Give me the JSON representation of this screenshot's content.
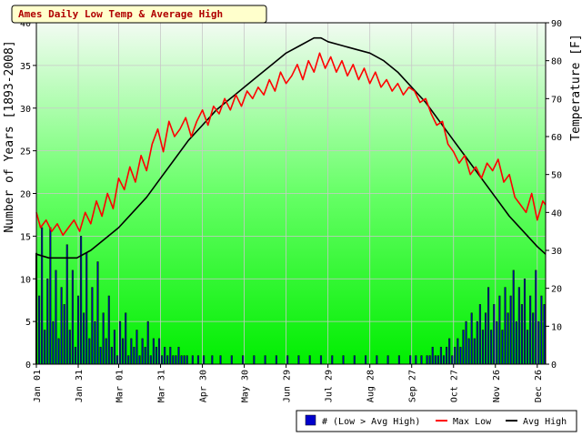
{
  "chart_data": {
    "type": "bar+line",
    "title": "Ames Daily Low Temp & Average High",
    "ylabel_left": "Number of Years [1893-2008]",
    "ylabel_right": "Temperature [F]",
    "xlabel": "",
    "ylim_left": [
      0,
      40
    ],
    "ylim_right": [
      0,
      90
    ],
    "left_ticks": [
      0,
      5,
      10,
      15,
      20,
      25,
      30,
      35,
      40
    ],
    "right_ticks": [
      0,
      10,
      20,
      30,
      40,
      50,
      60,
      70,
      80,
      90
    ],
    "x_ticks": [
      {
        "label": "Jan 01",
        "day": 1
      },
      {
        "label": "Jan 31",
        "day": 31
      },
      {
        "label": "Mar 01",
        "day": 60
      },
      {
        "label": "Mar 31",
        "day": 90
      },
      {
        "label": "Apr 30",
        "day": 120
      },
      {
        "label": "May 30",
        "day": 150
      },
      {
        "label": "Jun 29",
        "day": 180
      },
      {
        "label": "Jul 29",
        "day": 210
      },
      {
        "label": "Aug 28",
        "day": 240
      },
      {
        "label": "Sep 27",
        "day": 270
      },
      {
        "label": "Oct 27",
        "day": 300
      },
      {
        "label": "Nov 26",
        "day": 330
      },
      {
        "label": "Dec 26",
        "day": 360
      }
    ],
    "x_range": [
      1,
      366
    ],
    "grid": true,
    "legend_position": "bottom-right",
    "series": [
      {
        "name": "# (Low > Avg High)",
        "kind": "bar",
        "axis": "left",
        "color": "#0000cc",
        "points": [
          [
            1,
            13
          ],
          [
            3,
            8
          ],
          [
            5,
            16
          ],
          [
            7,
            4
          ],
          [
            9,
            10
          ],
          [
            11,
            16
          ],
          [
            13,
            5
          ],
          [
            15,
            11
          ],
          [
            17,
            3
          ],
          [
            19,
            9
          ],
          [
            21,
            7
          ],
          [
            23,
            14
          ],
          [
            25,
            4
          ],
          [
            27,
            11
          ],
          [
            29,
            2
          ],
          [
            31,
            8
          ],
          [
            33,
            15
          ],
          [
            35,
            6
          ],
          [
            37,
            13
          ],
          [
            39,
            3
          ],
          [
            41,
            9
          ],
          [
            43,
            5
          ],
          [
            45,
            12
          ],
          [
            47,
            2
          ],
          [
            49,
            6
          ],
          [
            51,
            3
          ],
          [
            53,
            8
          ],
          [
            55,
            2
          ],
          [
            57,
            4
          ],
          [
            59,
            1
          ],
          [
            61,
            5
          ],
          [
            63,
            3
          ],
          [
            65,
            6
          ],
          [
            67,
            1
          ],
          [
            69,
            3
          ],
          [
            71,
            2
          ],
          [
            73,
            4
          ],
          [
            75,
            1
          ],
          [
            77,
            3
          ],
          [
            79,
            2
          ],
          [
            81,
            5
          ],
          [
            83,
            1
          ],
          [
            85,
            3
          ],
          [
            87,
            2
          ],
          [
            89,
            3
          ],
          [
            91,
            1
          ],
          [
            93,
            2
          ],
          [
            95,
            1
          ],
          [
            97,
            2
          ],
          [
            99,
            1
          ],
          [
            101,
            1
          ],
          [
            103,
            2
          ],
          [
            105,
            1
          ],
          [
            107,
            1
          ],
          [
            109,
            1
          ],
          [
            113,
            1
          ],
          [
            117,
            1
          ],
          [
            121,
            1
          ],
          [
            127,
            1
          ],
          [
            133,
            1
          ],
          [
            141,
            1
          ],
          [
            149,
            1
          ],
          [
            157,
            1
          ],
          [
            165,
            1
          ],
          [
            173,
            1
          ],
          [
            181,
            1
          ],
          [
            189,
            1
          ],
          [
            197,
            1
          ],
          [
            205,
            1
          ],
          [
            213,
            1
          ],
          [
            221,
            1
          ],
          [
            229,
            1
          ],
          [
            237,
            1
          ],
          [
            245,
            1
          ],
          [
            253,
            1
          ],
          [
            261,
            1
          ],
          [
            269,
            1
          ],
          [
            273,
            1
          ],
          [
            277,
            1
          ],
          [
            281,
            1
          ],
          [
            283,
            1
          ],
          [
            285,
            2
          ],
          [
            287,
            1
          ],
          [
            289,
            1
          ],
          [
            291,
            2
          ],
          [
            293,
            1
          ],
          [
            295,
            2
          ],
          [
            297,
            3
          ],
          [
            299,
            1
          ],
          [
            301,
            2
          ],
          [
            303,
            3
          ],
          [
            305,
            2
          ],
          [
            307,
            4
          ],
          [
            309,
            5
          ],
          [
            311,
            3
          ],
          [
            313,
            6
          ],
          [
            315,
            3
          ],
          [
            317,
            5
          ],
          [
            319,
            7
          ],
          [
            321,
            4
          ],
          [
            323,
            6
          ],
          [
            325,
            9
          ],
          [
            327,
            4
          ],
          [
            329,
            7
          ],
          [
            331,
            5
          ],
          [
            333,
            8
          ],
          [
            335,
            4
          ],
          [
            337,
            9
          ],
          [
            339,
            6
          ],
          [
            341,
            8
          ],
          [
            343,
            11
          ],
          [
            345,
            5
          ],
          [
            347,
            9
          ],
          [
            349,
            7
          ],
          [
            351,
            10
          ],
          [
            353,
            4
          ],
          [
            355,
            8
          ],
          [
            357,
            6
          ],
          [
            359,
            11
          ],
          [
            361,
            5
          ],
          [
            363,
            8
          ],
          [
            365,
            7
          ]
        ]
      },
      {
        "name": "Max Low",
        "kind": "line",
        "axis": "right",
        "color": "#ff0000",
        "points": [
          [
            1,
            40
          ],
          [
            4,
            36
          ],
          [
            8,
            38
          ],
          [
            12,
            35
          ],
          [
            16,
            37
          ],
          [
            20,
            34
          ],
          [
            24,
            36
          ],
          [
            28,
            38
          ],
          [
            32,
            35
          ],
          [
            36,
            40
          ],
          [
            40,
            37
          ],
          [
            44,
            43
          ],
          [
            48,
            39
          ],
          [
            52,
            45
          ],
          [
            56,
            41
          ],
          [
            60,
            49
          ],
          [
            64,
            46
          ],
          [
            68,
            52
          ],
          [
            72,
            48
          ],
          [
            76,
            55
          ],
          [
            80,
            51
          ],
          [
            84,
            58
          ],
          [
            88,
            62
          ],
          [
            92,
            56
          ],
          [
            96,
            64
          ],
          [
            100,
            60
          ],
          [
            104,
            62
          ],
          [
            108,
            65
          ],
          [
            112,
            60
          ],
          [
            116,
            64
          ],
          [
            120,
            67
          ],
          [
            124,
            63
          ],
          [
            128,
            68
          ],
          [
            132,
            66
          ],
          [
            136,
            70
          ],
          [
            140,
            67
          ],
          [
            144,
            71
          ],
          [
            148,
            68
          ],
          [
            152,
            72
          ],
          [
            156,
            70
          ],
          [
            160,
            73
          ],
          [
            164,
            71
          ],
          [
            168,
            75
          ],
          [
            172,
            72
          ],
          [
            176,
            77
          ],
          [
            180,
            74
          ],
          [
            184,
            76
          ],
          [
            188,
            79
          ],
          [
            192,
            75
          ],
          [
            196,
            80
          ],
          [
            200,
            77
          ],
          [
            204,
            82
          ],
          [
            208,
            78
          ],
          [
            212,
            81
          ],
          [
            216,
            77
          ],
          [
            220,
            80
          ],
          [
            224,
            76
          ],
          [
            228,
            79
          ],
          [
            232,
            75
          ],
          [
            236,
            78
          ],
          [
            240,
            74
          ],
          [
            244,
            77
          ],
          [
            248,
            73
          ],
          [
            252,
            75
          ],
          [
            256,
            72
          ],
          [
            260,
            74
          ],
          [
            264,
            71
          ],
          [
            268,
            73
          ],
          [
            272,
            72
          ],
          [
            276,
            69
          ],
          [
            280,
            70
          ],
          [
            284,
            66
          ],
          [
            288,
            63
          ],
          [
            292,
            64
          ],
          [
            296,
            58
          ],
          [
            300,
            56
          ],
          [
            304,
            53
          ],
          [
            308,
            55
          ],
          [
            312,
            50
          ],
          [
            316,
            52
          ],
          [
            320,
            49
          ],
          [
            324,
            53
          ],
          [
            328,
            51
          ],
          [
            332,
            54
          ],
          [
            336,
            48
          ],
          [
            340,
            50
          ],
          [
            344,
            44
          ],
          [
            348,
            42
          ],
          [
            352,
            40
          ],
          [
            356,
            45
          ],
          [
            360,
            38
          ],
          [
            364,
            43
          ],
          [
            366,
            42
          ]
        ]
      },
      {
        "name": "Avg High",
        "kind": "line",
        "axis": "right",
        "color": "#000000",
        "points": [
          [
            1,
            29
          ],
          [
            10,
            28
          ],
          [
            20,
            28
          ],
          [
            30,
            28
          ],
          [
            40,
            30
          ],
          [
            50,
            33
          ],
          [
            60,
            36
          ],
          [
            70,
            40
          ],
          [
            80,
            44
          ],
          [
            90,
            49
          ],
          [
            100,
            54
          ],
          [
            110,
            59
          ],
          [
            120,
            63
          ],
          [
            130,
            67
          ],
          [
            140,
            70
          ],
          [
            150,
            73
          ],
          [
            160,
            76
          ],
          [
            170,
            79
          ],
          [
            180,
            82
          ],
          [
            190,
            84
          ],
          [
            200,
            86
          ],
          [
            205,
            86
          ],
          [
            210,
            85
          ],
          [
            220,
            84
          ],
          [
            230,
            83
          ],
          [
            240,
            82
          ],
          [
            250,
            80
          ],
          [
            260,
            77
          ],
          [
            270,
            73
          ],
          [
            280,
            69
          ],
          [
            290,
            64
          ],
          [
            300,
            59
          ],
          [
            310,
            54
          ],
          [
            320,
            49
          ],
          [
            330,
            44
          ],
          [
            340,
            39
          ],
          [
            350,
            35
          ],
          [
            360,
            31
          ],
          [
            366,
            29
          ]
        ]
      }
    ]
  }
}
